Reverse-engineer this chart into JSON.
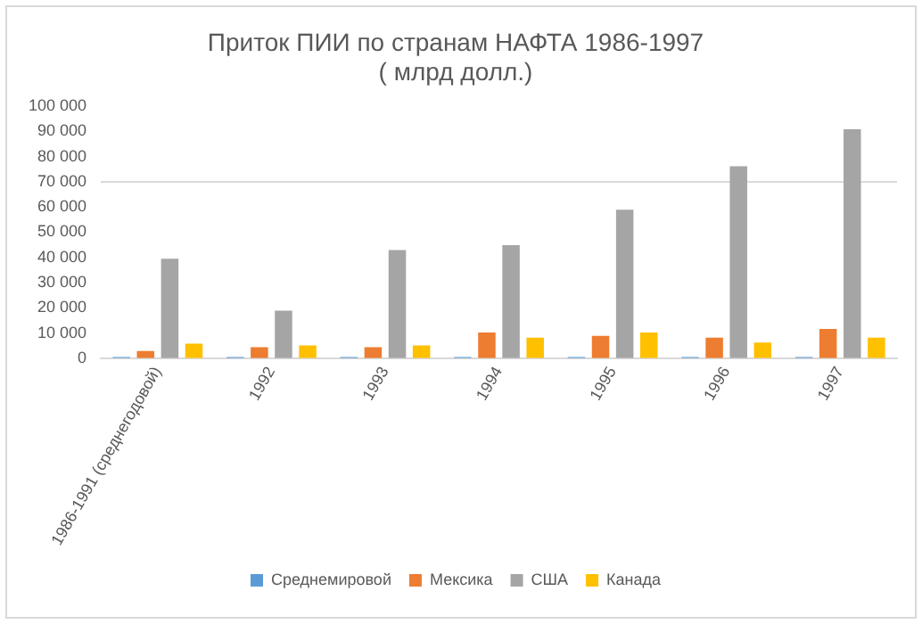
{
  "chart_data": {
    "type": "bar",
    "title": [
      "Приток ПИИ по странам НАФТА 1986-1997",
      "( млрд долл.)"
    ],
    "categories": [
      "1986-1991 (среднегодовой)",
      "1992",
      "1993",
      "1994",
      "1995",
      "1996",
      "1997"
    ],
    "series": [
      {
        "name": "Среднемировой",
        "color": "#5b9bd5",
        "values": [
          500,
          500,
          500,
          500,
          500,
          500,
          500
        ]
      },
      {
        "name": "Мексика",
        "color": "#ed7d31",
        "values": [
          2900,
          4400,
          4400,
          10200,
          8900,
          8200,
          11600
        ]
      },
      {
        "name": "США",
        "color": "#a5a5a5",
        "values": [
          39500,
          18900,
          42900,
          44900,
          58900,
          76200,
          90900
        ]
      },
      {
        "name": "Канада",
        "color": "#ffc000",
        "values": [
          5800,
          5100,
          5100,
          8200,
          10200,
          6200,
          8200
        ]
      }
    ],
    "ylim": [
      0,
      100000
    ],
    "yticks": [
      0,
      {
        "value": 10000,
        "label": "10 000"
      },
      {
        "value": 20000,
        "label": "20 000"
      },
      {
        "value": 30000,
        "label": "30 000"
      },
      {
        "value": 40000,
        "label": "40 000"
      },
      {
        "value": 50000,
        "label": "50 000"
      },
      {
        "value": 60000,
        "label": "60 000"
      },
      {
        "value": 70000,
        "label": "70 000"
      },
      {
        "value": 80000,
        "label": "80 000"
      },
      {
        "value": 90000,
        "label": "90 000"
      },
      {
        "value": 100000,
        "label": "100 000"
      }
    ],
    "ref_lines": [
      {
        "axis": "y",
        "value": 70000,
        "color": "#d9d9d9"
      }
    ],
    "grid": false,
    "legend": "bottom"
  }
}
